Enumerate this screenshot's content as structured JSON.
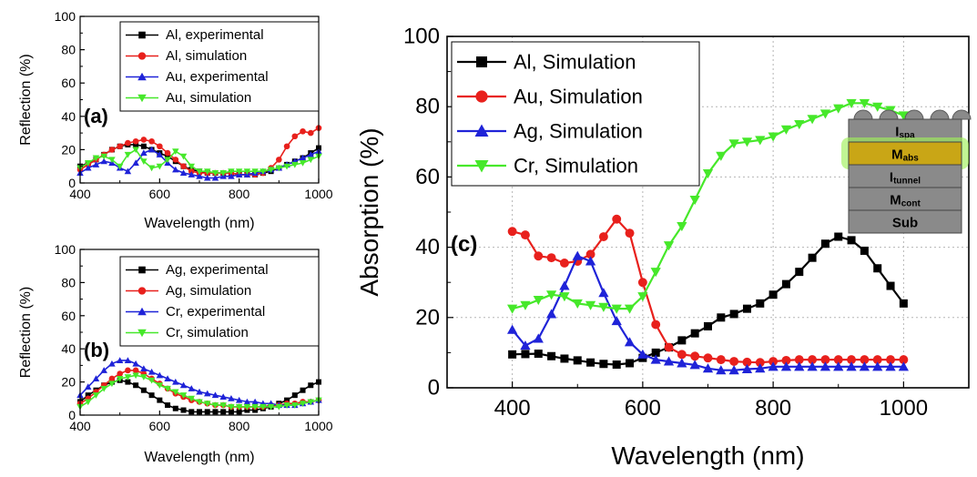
{
  "chart_data": [
    {
      "type": "line",
      "panel": "(a)",
      "xlabel": "Wavelength (nm)",
      "ylabel": "Reflection (%)",
      "xlim": [
        400,
        1000
      ],
      "ylim": [
        0,
        100
      ],
      "xticks": [
        400,
        600,
        800,
        1000
      ],
      "yticks": [
        0,
        20,
        40,
        60,
        80,
        100
      ],
      "grid": false,
      "legend_position": "top-right",
      "series": [
        {
          "name": "Al, experimental",
          "color": "#000000",
          "marker": "square",
          "x": [
            400,
            420,
            440,
            460,
            480,
            500,
            520,
            540,
            560,
            580,
            600,
            620,
            640,
            660,
            680,
            700,
            720,
            740,
            760,
            780,
            800,
            820,
            840,
            860,
            880,
            900,
            920,
            940,
            960,
            980,
            1000
          ],
          "y": [
            10,
            12,
            14,
            17,
            20,
            22,
            23,
            23,
            22,
            20,
            18,
            16,
            13,
            10,
            8,
            7,
            6,
            6,
            6,
            6,
            5,
            5,
            5,
            6,
            7,
            9,
            11,
            13,
            15,
            18,
            21
          ]
        },
        {
          "name": "Al, simulation",
          "color": "#e8201c",
          "marker": "circle",
          "x": [
            400,
            420,
            440,
            460,
            480,
            500,
            520,
            540,
            560,
            580,
            600,
            620,
            640,
            660,
            680,
            700,
            720,
            740,
            760,
            780,
            800,
            820,
            840,
            860,
            880,
            900,
            920,
            940,
            960,
            980,
            1000
          ],
          "y": [
            8,
            11,
            14,
            17,
            20,
            22,
            24,
            25,
            26,
            25,
            22,
            18,
            14,
            10,
            7,
            6,
            6,
            6,
            6,
            6,
            5,
            5,
            5,
            6,
            9,
            14,
            22,
            28,
            31,
            30,
            33
          ]
        },
        {
          "name": "Au, experimental",
          "color": "#1f23d8",
          "marker": "triangle-up",
          "x": [
            400,
            420,
            440,
            460,
            480,
            500,
            520,
            540,
            560,
            580,
            600,
            620,
            640,
            660,
            680,
            700,
            720,
            740,
            760,
            780,
            800,
            820,
            840,
            860,
            880,
            900,
            920,
            940,
            960,
            980,
            1000
          ],
          "y": [
            6,
            9,
            11,
            13,
            12,
            9,
            7,
            12,
            18,
            20,
            17,
            12,
            8,
            6,
            5,
            4,
            3,
            3,
            4,
            4,
            5,
            5,
            6,
            7,
            8,
            9,
            11,
            13,
            15,
            17,
            19
          ]
        },
        {
          "name": "Au, simulation",
          "color": "#46e82a",
          "marker": "triangle-down",
          "x": [
            400,
            420,
            440,
            460,
            480,
            500,
            520,
            540,
            560,
            580,
            600,
            620,
            640,
            660,
            680,
            700,
            720,
            740,
            760,
            780,
            800,
            820,
            840,
            860,
            880,
            900,
            920,
            940,
            960,
            980,
            1000
          ],
          "y": [
            9,
            12,
            15,
            16,
            14,
            10,
            17,
            20,
            13,
            9,
            10,
            14,
            19,
            16,
            10,
            7,
            7,
            6,
            6,
            7,
            7,
            7,
            7,
            7,
            8,
            9,
            10,
            11,
            12,
            14,
            16
          ]
        }
      ]
    },
    {
      "type": "line",
      "panel": "(b)",
      "xlabel": "Wavelength (nm)",
      "ylabel": "Reflection (%)",
      "xlim": [
        400,
        1000
      ],
      "ylim": [
        0,
        100
      ],
      "xticks": [
        400,
        600,
        800,
        1000
      ],
      "yticks": [
        0,
        20,
        40,
        60,
        80,
        100
      ],
      "grid": false,
      "legend_position": "top-right",
      "series": [
        {
          "name": "Ag, experimental",
          "color": "#000000",
          "marker": "square",
          "x": [
            400,
            420,
            440,
            460,
            480,
            500,
            520,
            540,
            560,
            580,
            600,
            620,
            640,
            660,
            680,
            700,
            720,
            740,
            760,
            780,
            800,
            820,
            840,
            860,
            880,
            900,
            920,
            940,
            960,
            980,
            1000
          ],
          "y": [
            8,
            12,
            15,
            18,
            20,
            21,
            20,
            18,
            15,
            12,
            9,
            6,
            4,
            3,
            2,
            2,
            2,
            2,
            2,
            2,
            2,
            3,
            3,
            4,
            5,
            7,
            9,
            12,
            15,
            18,
            20
          ]
        },
        {
          "name": "Ag, simulation",
          "color": "#e8201c",
          "marker": "circle",
          "x": [
            400,
            420,
            440,
            460,
            480,
            500,
            520,
            540,
            560,
            580,
            600,
            620,
            640,
            660,
            680,
            700,
            720,
            740,
            760,
            780,
            800,
            820,
            840,
            860,
            880,
            900,
            920,
            940,
            960,
            980,
            1000
          ],
          "y": [
            7,
            10,
            14,
            18,
            22,
            25,
            27,
            27,
            25,
            22,
            19,
            16,
            13,
            11,
            9,
            8,
            7,
            6,
            6,
            5,
            5,
            5,
            5,
            5,
            6,
            6,
            7,
            7,
            8,
            8,
            9
          ]
        },
        {
          "name": "Cr, experimental",
          "color": "#1f23d8",
          "marker": "triangle-up",
          "x": [
            400,
            420,
            440,
            460,
            480,
            500,
            520,
            540,
            560,
            580,
            600,
            620,
            640,
            660,
            680,
            700,
            720,
            740,
            760,
            780,
            800,
            820,
            840,
            860,
            880,
            900,
            920,
            940,
            960,
            980,
            1000
          ],
          "y": [
            12,
            17,
            22,
            27,
            31,
            33,
            33,
            31,
            28,
            26,
            24,
            22,
            20,
            18,
            16,
            14,
            13,
            12,
            11,
            10,
            9,
            8,
            8,
            7,
            7,
            6,
            6,
            6,
            7,
            8,
            9
          ]
        },
        {
          "name": "Cr, simulation",
          "color": "#46e82a",
          "marker": "triangle-down",
          "x": [
            400,
            420,
            440,
            460,
            480,
            500,
            520,
            540,
            560,
            580,
            600,
            620,
            640,
            660,
            680,
            700,
            720,
            740,
            760,
            780,
            800,
            820,
            840,
            860,
            880,
            900,
            920,
            940,
            960,
            980,
            1000
          ],
          "y": [
            5,
            8,
            12,
            16,
            19,
            22,
            23,
            24,
            23,
            21,
            18,
            16,
            14,
            12,
            10,
            8,
            7,
            6,
            6,
            5,
            5,
            5,
            5,
            5,
            5,
            5,
            6,
            6,
            7,
            8,
            9
          ]
        }
      ]
    },
    {
      "type": "line",
      "panel": "(c)",
      "xlabel": "Wavelength (nm)",
      "ylabel": "Absorption (%)",
      "xlim": [
        300,
        1100
      ],
      "ylim": [
        0,
        100
      ],
      "xticks": [
        400,
        600,
        800,
        1000
      ],
      "yticks": [
        0,
        20,
        40,
        60,
        80,
        100
      ],
      "grid": true,
      "legend_position": "top-left",
      "series": [
        {
          "name": "Al, Simulation",
          "color": "#000000",
          "marker": "square",
          "x": [
            400,
            420,
            440,
            460,
            480,
            500,
            520,
            540,
            560,
            580,
            600,
            620,
            640,
            660,
            680,
            700,
            720,
            740,
            760,
            780,
            800,
            820,
            840,
            860,
            880,
            900,
            920,
            940,
            960,
            980,
            1000
          ],
          "y": [
            9.5,
            9.6,
            9.7,
            9.0,
            8.3,
            7.8,
            7.2,
            6.8,
            6.6,
            7.0,
            8.5,
            10,
            11.5,
            13.5,
            15.5,
            17.5,
            20,
            21,
            22.5,
            24,
            26.5,
            29.5,
            33,
            37,
            41,
            43,
            42,
            39,
            34,
            29,
            24
          ]
        },
        {
          "name": "Au, Simulation",
          "color": "#e8201c",
          "marker": "circle",
          "x": [
            400,
            420,
            440,
            460,
            480,
            500,
            520,
            540,
            560,
            580,
            600,
            620,
            640,
            660,
            680,
            700,
            720,
            740,
            760,
            780,
            800,
            820,
            840,
            860,
            880,
            900,
            920,
            940,
            960,
            980,
            1000
          ],
          "y": [
            44.5,
            43.5,
            37.5,
            37,
            35.5,
            36,
            38,
            43,
            48,
            44,
            30,
            18,
            11.5,
            9.5,
            9,
            8.5,
            8,
            7.5,
            7.3,
            7.2,
            7.5,
            7.8,
            8,
            8,
            8,
            8,
            8,
            8,
            8,
            8,
            8
          ]
        },
        {
          "name": "Ag, Simulation",
          "color": "#1f23d8",
          "marker": "triangle-up",
          "x": [
            400,
            420,
            440,
            460,
            480,
            500,
            520,
            540,
            560,
            580,
            600,
            620,
            640,
            660,
            680,
            700,
            720,
            740,
            760,
            780,
            800,
            820,
            840,
            860,
            880,
            900,
            920,
            940,
            960,
            980,
            1000
          ],
          "y": [
            16.5,
            12,
            14,
            21,
            29,
            37.5,
            36,
            27,
            19,
            13,
            9.5,
            8,
            7.5,
            7,
            6.5,
            5.5,
            5,
            5,
            5.3,
            5.5,
            6,
            6,
            6,
            6,
            6,
            6,
            6,
            6,
            6,
            6,
            6
          ]
        },
        {
          "name": "Cr, Simulation",
          "color": "#46e82a",
          "marker": "triangle-down",
          "x": [
            400,
            420,
            440,
            460,
            480,
            500,
            520,
            540,
            560,
            580,
            600,
            620,
            640,
            660,
            680,
            700,
            720,
            740,
            760,
            780,
            800,
            820,
            840,
            860,
            880,
            900,
            920,
            940,
            960,
            980,
            1000
          ],
          "y": [
            22.5,
            23.5,
            25,
            26.5,
            26,
            24,
            23.5,
            23,
            22.5,
            22.5,
            26,
            33,
            40.5,
            46,
            53.5,
            61,
            66,
            69.5,
            70,
            70.5,
            71.5,
            73.5,
            75,
            76.5,
            78,
            79.5,
            81,
            81,
            80,
            79,
            77.5
          ]
        }
      ]
    }
  ],
  "inset": {
    "layers": [
      {
        "label": "I",
        "sub": "spa",
        "color": "#8a8a8a",
        "text_color": "#000000",
        "emphasis": false
      },
      {
        "label": "M",
        "sub": "abs",
        "color": "#c9a616",
        "text_color": "#d61a1a",
        "emphasis": true
      },
      {
        "label": "I",
        "sub": "tunnel",
        "color": "#8a8a8a",
        "text_color": "#000000",
        "emphasis": false
      },
      {
        "label": "M",
        "sub": "cont",
        "color": "#8a8a8a",
        "text_color": "#000000",
        "emphasis": false
      },
      {
        "label": "Sub",
        "sub": "",
        "color": "#8a8a8a",
        "text_color": "#000000",
        "emphasis": false
      }
    ],
    "glow_color": "#9ff05a"
  }
}
